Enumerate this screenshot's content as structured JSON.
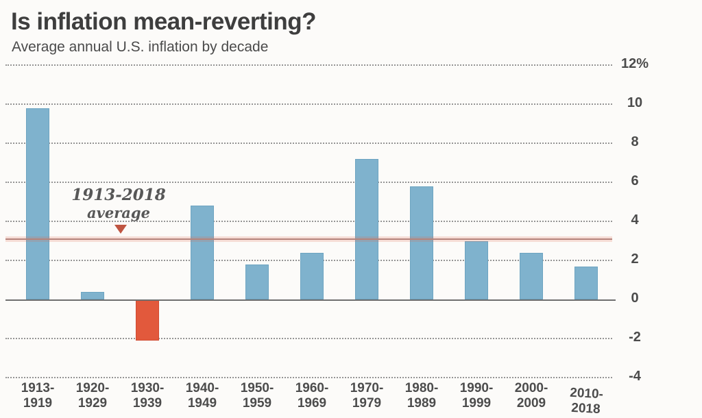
{
  "chart_data": {
    "type": "bar",
    "title": "Is inflation mean-reverting?",
    "subtitle": "Average annual U.S. inflation by decade",
    "categories": [
      "1913-1919",
      "1920-1929",
      "1930-1939",
      "1940-1949",
      "1950-1959",
      "1960-1969",
      "1970-1979",
      "1980-1989",
      "1990-1999",
      "2000-2009",
      "2010-2018"
    ],
    "values": [
      9.8,
      0.4,
      -2.1,
      4.8,
      1.8,
      2.4,
      7.2,
      5.8,
      3.0,
      2.4,
      1.7
    ],
    "ylim": [
      -4,
      12
    ],
    "ytick_labels": [
      "12%",
      "10",
      "8",
      "6",
      "4",
      "2",
      "0",
      "-2",
      "-4"
    ],
    "grid": "dotted horizontal",
    "average_annotation": {
      "line1": "1913-2018",
      "line2": "average",
      "value": 3.1
    },
    "colors": {
      "bar_positive": "#7fb2cd",
      "bar_positive_edge": "#6da4c1",
      "bar_negative": "#e2593c",
      "bar_negative_edge": "#d14c32",
      "average_line": "#b5847c",
      "average_halo": "#e06a4d",
      "zero_line": "#6e6e6e",
      "gridline": "#949494"
    }
  }
}
